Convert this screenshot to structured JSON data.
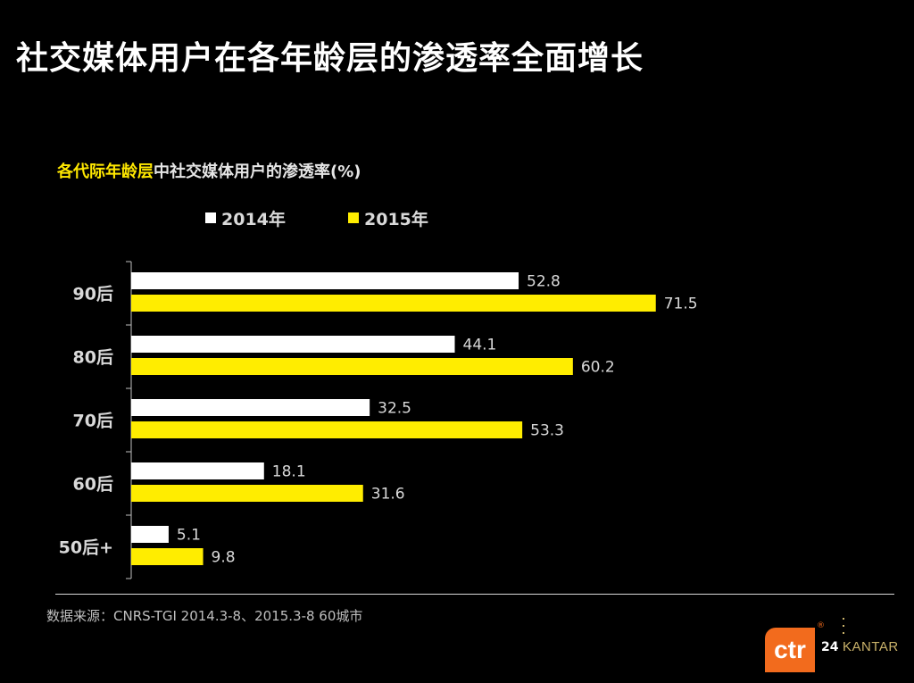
{
  "title": "社交媒体用户在各年龄层的渗透率全面增长",
  "subtitle_highlight": "各代际年龄层",
  "subtitle_rest": "中社交媒体用户的渗透率(%)",
  "colors": {
    "series_2014": "#ffffff",
    "series_2015": "#ffed00",
    "background": "#000000"
  },
  "chart_data": {
    "type": "bar",
    "orientation": "horizontal",
    "categories": [
      "90后",
      "80后",
      "70后",
      "60后",
      "50后+"
    ],
    "series": [
      {
        "name": "2014年",
        "values": [
          52.8,
          44.1,
          32.5,
          18.1,
          5.1
        ]
      },
      {
        "name": "2015年",
        "values": [
          71.5,
          60.2,
          53.3,
          31.6,
          9.8
        ]
      }
    ],
    "title": "各代际年龄层中社交媒体用户的渗透率(%)",
    "legend_position": "top",
    "data_labels": true,
    "grid": false
  },
  "source": "数据来源：CNRS-TGI 2014.3-8、2015.3-8  60城市",
  "footer": {
    "logo_text": "ctr",
    "registered": "®",
    "page_number": "24",
    "brand": "KANTAR"
  }
}
